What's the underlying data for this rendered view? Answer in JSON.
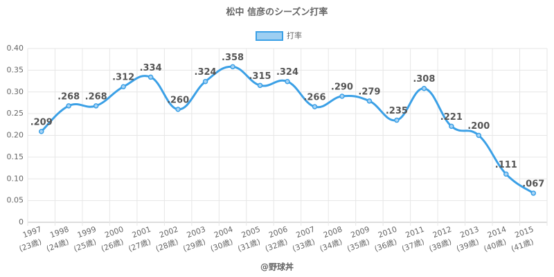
{
  "chart_data": {
    "type": "line",
    "title": "松中 信彦のシーズン打率",
    "categories": [
      "1997",
      "1998",
      "1999",
      "2000",
      "2001",
      "2002",
      "2003",
      "2004",
      "2005",
      "2006",
      "2007",
      "2008",
      "2009",
      "2010",
      "2011",
      "2012",
      "2013",
      "2014",
      "2015"
    ],
    "x_sublabels": [
      "(23歳)",
      "(24歳)",
      "(25歳)",
      "(26歳)",
      "(27歳)",
      "(28歳)",
      "(29歳)",
      "(30歳)",
      "(31歳)",
      "(32歳)",
      "(33歳)",
      "(34歳)",
      "(35歳)",
      "(36歳)",
      "(37歳)",
      "(38歳)",
      "(39歳)",
      "(40歳)",
      "(41歳)"
    ],
    "series": [
      {
        "name": "打率",
        "color": "#3ba0e6",
        "values": [
          0.209,
          0.268,
          0.268,
          0.312,
          0.334,
          0.26,
          0.324,
          0.358,
          0.315,
          0.324,
          0.266,
          0.29,
          0.279,
          0.235,
          0.308,
          0.221,
          0.2,
          0.111,
          0.067
        ],
        "value_labels": [
          ".209",
          ".268",
          ".268",
          ".312",
          ".334",
          ".260",
          ".324",
          ".358",
          ".315",
          ".324",
          ".266",
          ".290",
          ".279",
          ".235",
          ".308",
          ".221",
          ".200",
          ".111",
          ".067"
        ]
      }
    ],
    "ylim": [
      0,
      0.4
    ],
    "yticks": [
      0,
      0.05,
      {
        "value": 0.1,
        "label": "0.10"
      },
      0.15,
      {
        "value": 0.2,
        "label": "0.20"
      },
      0.25,
      {
        "value": 0.3,
        "label": "0.30"
      },
      0.35,
      {
        "value": 0.4,
        "label": "0.40"
      }
    ],
    "grid": true,
    "legend": "top",
    "footer": "@野球丼"
  }
}
